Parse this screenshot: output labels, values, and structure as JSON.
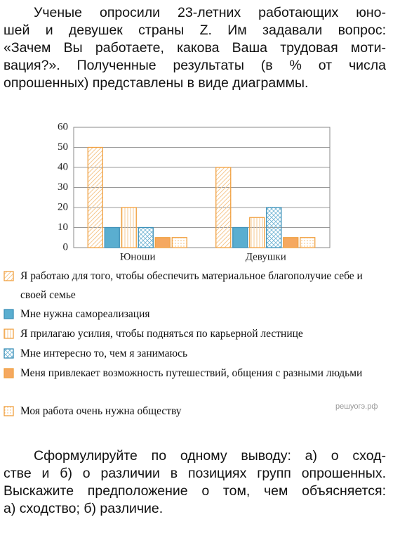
{
  "intro": [
    "Ученые опросили 23-летних работающих юно-",
    "шей и девушек страны Z. Им задавали вопрос:",
    "«Зачем Вы работаете, какова Ваша трудовая моти-",
    "вация?». Полученные результаты (в % от числа",
    "опрошенных) представлены в виде диаграммы."
  ],
  "chart_data": {
    "type": "bar",
    "categories": [
      "Юноши",
      "Девушки"
    ],
    "series": [
      {
        "name": "Я работаю для того, чтобы обеспечить материальное благополучие себе и своей семье",
        "color": "#f0a040",
        "pattern": "diagonal",
        "values": [
          50,
          40
        ]
      },
      {
        "name": "Мне нужна самореализация",
        "color": "#3a8fb7",
        "pattern": "solid",
        "values": [
          10,
          10
        ]
      },
      {
        "name": "Я прилагаю усилия, чтобы подняться по карьерной лестнице",
        "color": "#f0a040",
        "pattern": "vertical",
        "values": [
          20,
          15
        ]
      },
      {
        "name": "Мне интересно то, чем я занимаюсь",
        "color": "#3a8fb7",
        "pattern": "crosshatch",
        "values": [
          10,
          20
        ]
      },
      {
        "name": "Меня привлекает возможность путешествий, общения с разными людьми",
        "color": "#f0a040",
        "pattern": "solid",
        "values": [
          5,
          5
        ]
      },
      {
        "name": "Моя работа очень нужна обществу",
        "color": "#f0a040",
        "pattern": "dots",
        "values": [
          5,
          5
        ]
      }
    ],
    "ylim": [
      0,
      60
    ],
    "yticks": [
      0,
      10,
      20,
      30,
      40,
      50,
      60
    ],
    "grid": true
  },
  "watermark": "решуогэ.рф",
  "question": [
    "Сформулируйте по одному выводу: а) о сход-",
    "стве и б) о различии в позициях групп опрошенных.",
    "Выскажите предположение о том, чем объясняется:",
    "а) сходство; б) различие."
  ]
}
